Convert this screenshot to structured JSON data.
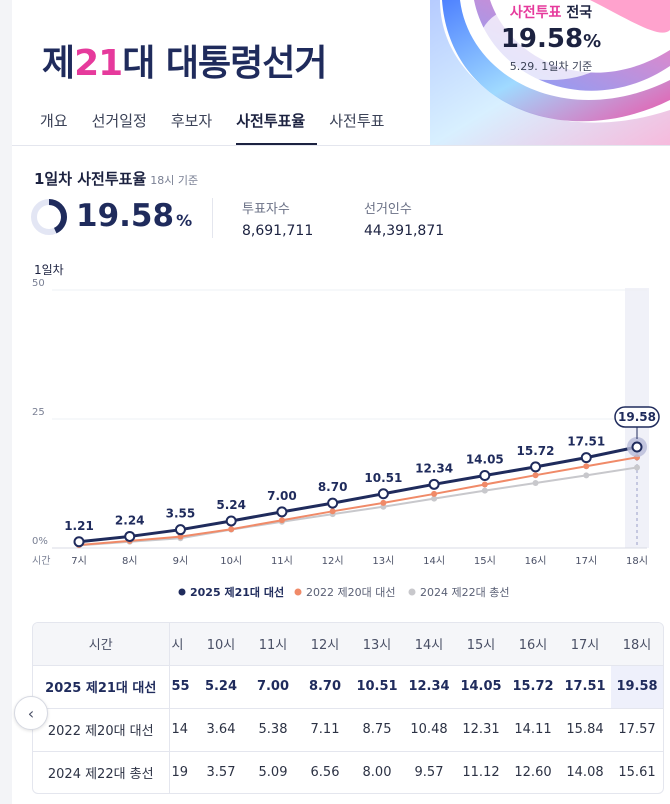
{
  "header": {
    "title_prefix": "제",
    "title_num": "21",
    "title_suffix": "대 대통령선거",
    "tabs": [
      {
        "label": "개요",
        "active": false
      },
      {
        "label": "선거일정",
        "active": false
      },
      {
        "label": "후보자",
        "active": false
      },
      {
        "label": "사전투표율",
        "active": true
      },
      {
        "label": "사전투표",
        "active": false
      }
    ],
    "hero": {
      "label_pink": "사전투표",
      "label_rest": "전국",
      "value": "19.58",
      "pct": "%",
      "sub": "5.29. 1일차 기준"
    }
  },
  "summary": {
    "title": "1일차 사전투표율",
    "title_sub": "18시 기준",
    "rate": "19.58",
    "rate_unit": "%",
    "rate_fraction": 0.1958,
    "voters_label": "투표자수",
    "voters_value": "8,691,711",
    "electors_label": "선거인수",
    "electors_value": "44,391,871"
  },
  "chart_data": {
    "type": "line",
    "title": "1일차",
    "xlabel": "시간",
    "ylabel": "",
    "ylim": [
      0,
      50
    ],
    "yticks": [
      "0%",
      "25",
      "50"
    ],
    "x": [
      "7시",
      "8시",
      "9시",
      "10시",
      "11시",
      "12시",
      "13시",
      "14시",
      "15시",
      "16시",
      "17시",
      "18시"
    ],
    "series": [
      {
        "name": "2025 제21대 대선",
        "color": "#1f2b5c",
        "values": [
          1.21,
          2.24,
          3.55,
          5.24,
          7.0,
          8.7,
          10.51,
          12.34,
          14.05,
          15.72,
          17.51,
          19.58
        ],
        "labels": [
          "1.21",
          "2.24",
          "3.55",
          "5.24",
          "7.00",
          "8.70",
          "10.51",
          "12.34",
          "14.05",
          "15.72",
          "17.51",
          "19.58"
        ]
      },
      {
        "name": "2022 제20대 대선",
        "color": "#f08a68",
        "values": [
          0.57,
          1.38,
          2.2,
          3.64,
          5.38,
          7.11,
          8.75,
          10.48,
          12.31,
          14.11,
          15.84,
          17.57
        ]
      },
      {
        "name": "2024 제22대 총선",
        "color": "#c8c8cc",
        "values": [
          0.5,
          1.2,
          1.9,
          3.57,
          5.09,
          6.56,
          8.0,
          9.57,
          11.12,
          12.6,
          14.08,
          15.61
        ]
      }
    ],
    "highlight_index": 11,
    "legend_position": "bottom",
    "grid": true
  },
  "table": {
    "header_label": "시간",
    "cut_header": "시",
    "columns": [
      "10시",
      "11시",
      "12시",
      "13시",
      "14시",
      "15시",
      "16시",
      "17시",
      "18시"
    ],
    "rows": [
      {
        "label": "2025 제21대 대선",
        "cut": "55",
        "values": [
          "5.24",
          "7.00",
          "8.70",
          "10.51",
          "12.34",
          "14.05",
          "15.72",
          "17.51",
          "19.58"
        ]
      },
      {
        "label": "2022 제20대 대선",
        "cut": "14",
        "values": [
          "3.64",
          "5.38",
          "7.11",
          "8.75",
          "10.48",
          "12.31",
          "14.11",
          "15.84",
          "17.57"
        ]
      },
      {
        "label": "2024 제22대 총선",
        "cut": "19",
        "values": [
          "3.57",
          "5.09",
          "6.56",
          "8.00",
          "9.57",
          "11.12",
          "12.60",
          "14.08",
          "15.61"
        ]
      }
    ],
    "scroll_left_icon": "chevron-left-icon"
  }
}
